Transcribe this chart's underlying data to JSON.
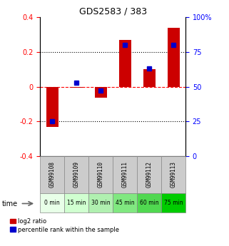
{
  "title": "GDS2583 / 383",
  "samples": [
    "GSM99108",
    "GSM99109",
    "GSM99110",
    "GSM99111",
    "GSM99112",
    "GSM99113"
  ],
  "time_labels": [
    "0 min",
    "15 min",
    "30 min",
    "45 min",
    "60 min",
    "75 min"
  ],
  "log2_ratio": [
    -0.23,
    -0.005,
    -0.065,
    0.27,
    0.1,
    0.34
  ],
  "percentile_rank": [
    25,
    53,
    47,
    80,
    63,
    80
  ],
  "bar_color": "#cc0000",
  "dot_color": "#0000cc",
  "ylim_left": [
    -0.4,
    0.4
  ],
  "ylim_right": [
    0,
    100
  ],
  "yticks_left": [
    -0.4,
    -0.2,
    0.0,
    0.2,
    0.4
  ],
  "yticks_right": [
    0,
    25,
    50,
    75,
    100
  ],
  "ytick_labels_right": [
    "0",
    "25",
    "50",
    "75",
    "100%"
  ],
  "time_colors": [
    "#e8ffe8",
    "#d0ffd0",
    "#b0f0b0",
    "#80e880",
    "#50d850",
    "#00cc00"
  ],
  "sample_bg": "#cccccc",
  "legend_entries": [
    "log2 ratio",
    "percentile rank within the sample"
  ],
  "bar_width": 0.5
}
